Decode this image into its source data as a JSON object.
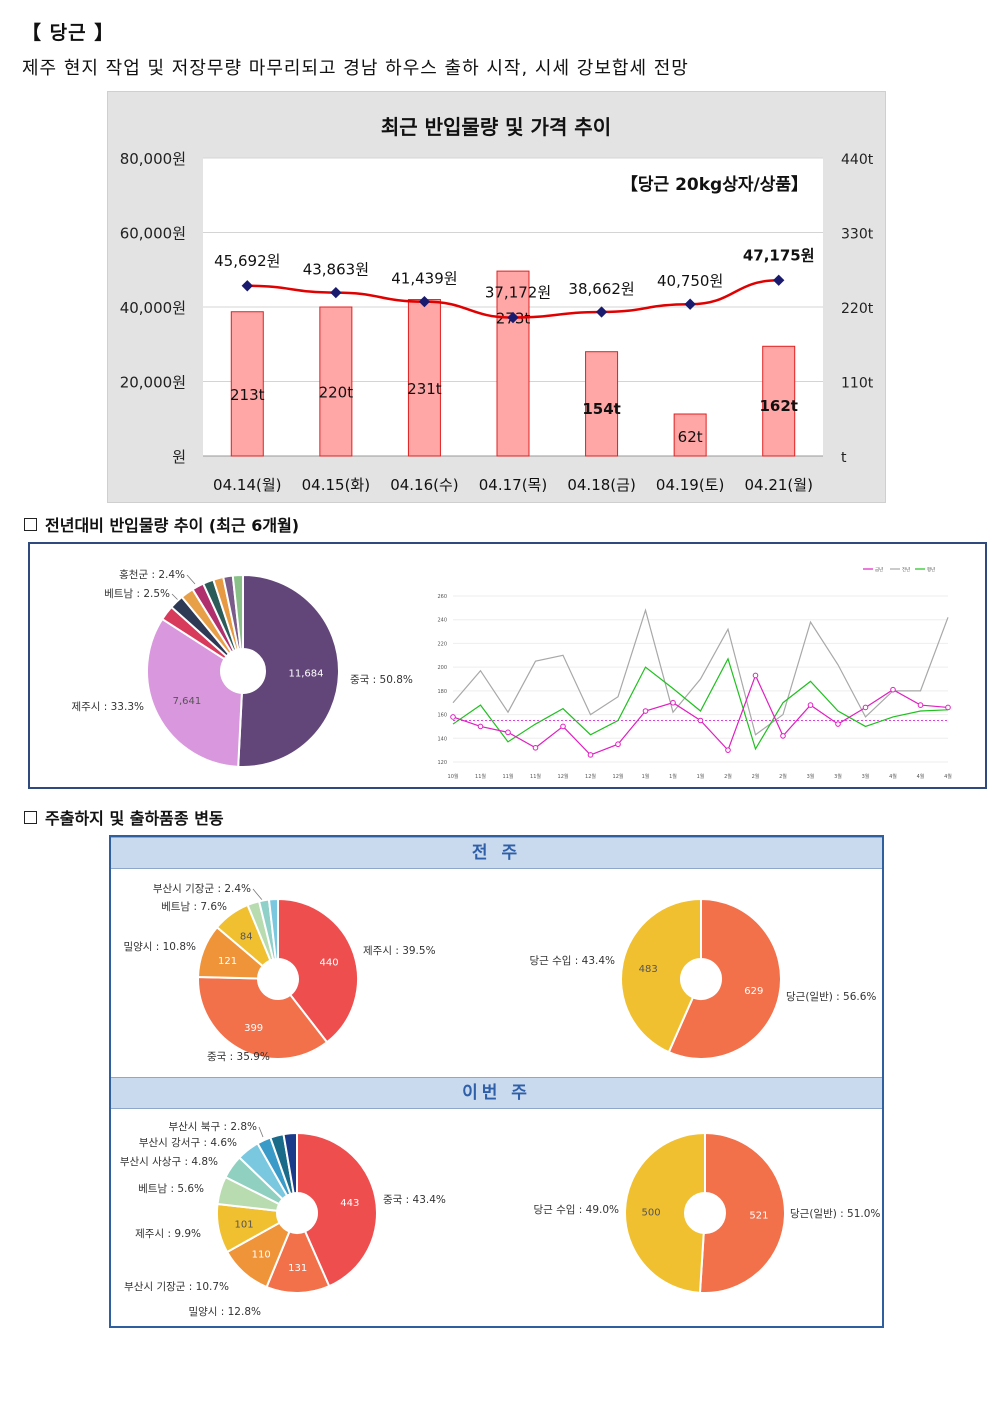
{
  "header": {
    "title": "【 당근 】",
    "subtitle": "제주 현지 작업 및 저장무량 마무리되고 경남 하우스 출하 시작, 시세 강보합세 전망"
  },
  "chart_data": [
    {
      "type": "bar",
      "title": "최근 반입물량 및 가격 추이",
      "annotation": "【당근 20kg상자/상품】",
      "categories": [
        "04.14(월)",
        "04.15(화)",
        "04.16(수)",
        "04.17(목)",
        "04.18(금)",
        "04.19(토)",
        "04.21(월)"
      ],
      "y_left_ticks": [
        "80,000원",
        "60,000원",
        "40,000원",
        "20,000원",
        "원"
      ],
      "y_right_ticks": [
        "440t",
        "330t",
        "220t",
        "110t",
        "t"
      ],
      "ylim_left": [
        0,
        80000
      ],
      "ylim_right": [
        0,
        440
      ],
      "series": [
        {
          "name": "반입물량",
          "axis": "right",
          "kind": "bar",
          "values": [
            213,
            220,
            231,
            273,
            154,
            62,
            162
          ],
          "labels": [
            "213t",
            "220t",
            "231t",
            "273t",
            "154t",
            "62t",
            "162t"
          ]
        },
        {
          "name": "가격",
          "axis": "left",
          "kind": "line",
          "values": [
            45692,
            43863,
            41439,
            37172,
            38662,
            40750,
            47175
          ],
          "labels": [
            "45,692원",
            "43,863원",
            "41,439원",
            "37,172원",
            "38,662원",
            "40,750원",
            "47,175원"
          ]
        }
      ],
      "colors": {
        "bar": "#ffa6a6",
        "bar_border": "#e02020",
        "line": "#e00000",
        "marker": "#1a1a6e"
      }
    },
    {
      "type": "pie",
      "title": "전년대비 반입물량 추이 (최근 6개월) - 출하지",
      "slices": [
        {
          "label": "중국 : 50.8%",
          "value": 50.8,
          "inner": "11,684",
          "color": "#62467a"
        },
        {
          "label": "제주시 : 33.3%",
          "value": 33.3,
          "inner": "7,641",
          "color": "#d997dd"
        },
        {
          "label": "베트남 : 2.5%",
          "value": 2.5,
          "color": "#d83a5c"
        },
        {
          "label": "홍천군 : 2.4%",
          "value": 2.4,
          "color": "#2e3a55"
        },
        {
          "label": "",
          "value": 2.2,
          "color": "#e8a048"
        },
        {
          "label": "",
          "value": 2.0,
          "color": "#b0306e"
        },
        {
          "label": "",
          "value": 1.8,
          "color": "#2c5c5a"
        },
        {
          "label": "",
          "value": 1.7,
          "color": "#e89a42"
        },
        {
          "label": "",
          "value": 1.6,
          "color": "#7a5a8a"
        },
        {
          "label": "",
          "value": 1.7,
          "color": "#88c088"
        }
      ]
    },
    {
      "type": "line",
      "title": "전년대비 반입물량 추이 (최근 6개월) - 추이",
      "legend": [
        "금년",
        "전년",
        "평년"
      ],
      "x": [
        "10월",
        "11월",
        "11월",
        "11월",
        "12월",
        "12월",
        "12월",
        "1월",
        "1월",
        "1월",
        "2월",
        "2월",
        "2월",
        "3월",
        "3월",
        "3월",
        "4월",
        "4월",
        "4월"
      ],
      "y_ticks": [
        "260",
        "240",
        "220",
        "200",
        "180",
        "160",
        "140",
        "120"
      ],
      "ylim": [
        120,
        260
      ],
      "series": [
        {
          "name": "금년",
          "color": "#e020c0",
          "values": [
            158,
            150,
            145,
            132,
            150,
            126,
            135,
            163,
            170,
            155,
            130,
            193,
            142,
            168,
            152,
            166,
            181,
            168,
            166
          ]
        },
        {
          "name": "전년",
          "color": "#a8a8a8",
          "values": [
            170,
            197,
            162,
            205,
            210,
            160,
            175,
            248,
            162,
            190,
            232,
            143,
            160,
            238,
            202,
            158,
            180,
            180,
            242
          ]
        },
        {
          "name": "평년",
          "color": "#20c020",
          "values": [
            152,
            168,
            137,
            152,
            165,
            143,
            155,
            200,
            182,
            163,
            207,
            131,
            170,
            188,
            163,
            150,
            158,
            163,
            164
          ]
        }
      ],
      "reference_line": 155
    },
    {
      "type": "pie",
      "title": "주출하지 및 출하품종 변동 - 전주 출하지",
      "slices": [
        {
          "label": "제주시 : 39.5%",
          "value": 39.5,
          "inner": "440",
          "color": "#ef4e4e"
        },
        {
          "label": "중국 : 35.9%",
          "value": 35.9,
          "inner": "399",
          "color": "#f2704a"
        },
        {
          "label": "밀양시 : 10.8%",
          "value": 10.8,
          "inner": "121",
          "color": "#f0943a"
        },
        {
          "label": "베트남 : 7.6%",
          "value": 7.6,
          "inner": "84",
          "color": "#f0c030"
        },
        {
          "label": "부산시 기장군 : 2.4%",
          "value": 2.4,
          "color": "#b8dcb0"
        },
        {
          "label": "",
          "value": 2.0,
          "color": "#8fd0c8"
        },
        {
          "label": "",
          "value": 1.8,
          "color": "#7ac8e0"
        }
      ]
    },
    {
      "type": "pie",
      "title": "주출하지 및 출하품종 변동 - 전주 품종",
      "slices": [
        {
          "label": "당근(일반) : 56.6%",
          "value": 56.6,
          "inner": "629",
          "color": "#f2704a"
        },
        {
          "label": "당근 수입 : 43.4%",
          "value": 43.4,
          "inner": "483",
          "color": "#f0c030"
        }
      ]
    },
    {
      "type": "pie",
      "title": "주출하지 및 출하품종 변동 - 이번 주 출하지",
      "slices": [
        {
          "label": "중국 : 43.4%",
          "value": 43.4,
          "inner": "443",
          "color": "#ef4e4e"
        },
        {
          "label": "밀양시 : 12.8%",
          "value": 12.8,
          "inner": "131",
          "color": "#f2704a"
        },
        {
          "label": "부산시 기장군 : 10.7%",
          "value": 10.7,
          "inner": "110",
          "color": "#f0943a"
        },
        {
          "label": "제주시 : 9.9%",
          "value": 9.9,
          "inner": "101",
          "color": "#f0c030"
        },
        {
          "label": "베트남 : 5.6%",
          "value": 5.6,
          "color": "#b8dcb0"
        },
        {
          "label": "부산시 사상구 : 4.8%",
          "value": 4.8,
          "color": "#8fd0c0"
        },
        {
          "label": "부산시 강서구 : 4.6%",
          "value": 4.6,
          "color": "#7ac8e0"
        },
        {
          "label": "부산시 북구 : 2.8%",
          "value": 2.8,
          "color": "#3a9ac8"
        },
        {
          "label": "",
          "value": 2.7,
          "color": "#1a6a8a"
        },
        {
          "label": "",
          "value": 2.7,
          "color": "#1a3a8a"
        }
      ]
    },
    {
      "type": "pie",
      "title": "주출하지 및 출하품종 변동 - 이번 주 품종",
      "slices": [
        {
          "label": "당근(일반) : 51.0%",
          "value": 51.0,
          "inner": "521",
          "color": "#f2704a"
        },
        {
          "label": "당근 수입 : 49.0%",
          "value": 49.0,
          "inner": "500",
          "color": "#f0c030"
        }
      ]
    }
  ],
  "sections": {
    "s1": "전년대비 반입물량 추이 (최근 6개월)",
    "s2": "주출하지 및 출하품종 변동",
    "band_prev": "전 주",
    "band_this": "이번 주"
  }
}
